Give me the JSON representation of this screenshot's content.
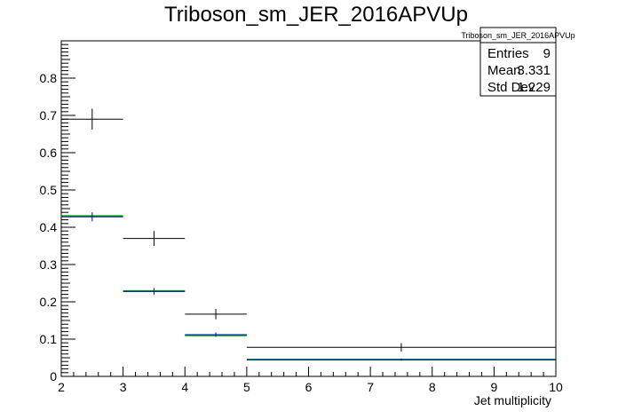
{
  "chart_data": {
    "type": "histogram",
    "title": "Triboson_sm_JER_2016APVUp",
    "xlabel": "Jet multiplicity",
    "ylabel": "",
    "xlim": [
      2,
      10
    ],
    "ylim": [
      0,
      0.9
    ],
    "x_ticks": [
      "2",
      "3",
      "4",
      "5",
      "6",
      "7",
      "8",
      "9",
      "10"
    ],
    "y_ticks": [
      "0",
      "0.1",
      "0.2",
      "0.3",
      "0.4",
      "0.5",
      "0.6",
      "0.7",
      "0.8"
    ],
    "bins": [
      [
        2,
        3
      ],
      [
        3,
        4
      ],
      [
        4,
        5
      ],
      [
        5,
        10
      ]
    ],
    "series": [
      {
        "color": "#000000",
        "values": [
          0.69,
          0.37,
          0.167,
          0.078
        ],
        "errors": [
          0.028,
          0.02,
          0.014,
          0.011
        ]
      },
      {
        "color": "#00aa00",
        "values": [
          0.43,
          0.229,
          0.11,
          0.045
        ],
        "errors": [
          0,
          0,
          0,
          0
        ]
      },
      {
        "color": "#0000cc",
        "values": [
          0.428,
          0.228,
          0.112,
          0.045
        ],
        "errors": [
          0.012,
          0.009,
          0.006,
          0.003
        ]
      }
    ],
    "stats_box": {
      "title": "Triboson_sm_JER_2016APVUp",
      "rows": [
        {
          "label": "Entries",
          "value": "9"
        },
        {
          "label": "Mean",
          "value": "3.331"
        },
        {
          "label": "Std Dev",
          "value": "1.229"
        }
      ]
    }
  }
}
